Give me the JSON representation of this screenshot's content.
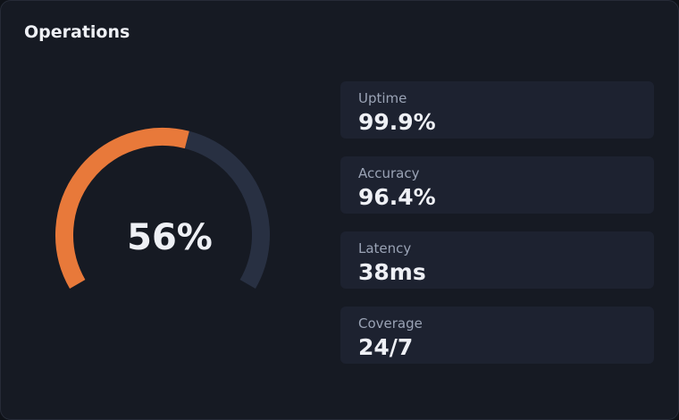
{
  "card": {
    "title": "Operations"
  },
  "chart_data": {
    "type": "gauge",
    "values": [
      56
    ],
    "value_labels": [
      "56%"
    ],
    "ylim": [
      0,
      100
    ],
    "color": "#e8793a",
    "track_color": "#283042"
  },
  "stats": [
    {
      "label": "Uptime",
      "value": "99.9%"
    },
    {
      "label": "Accuracy",
      "value": "96.4%"
    },
    {
      "label": "Latency",
      "value": "38ms"
    },
    {
      "label": "Coverage",
      "value": "24/7"
    }
  ]
}
